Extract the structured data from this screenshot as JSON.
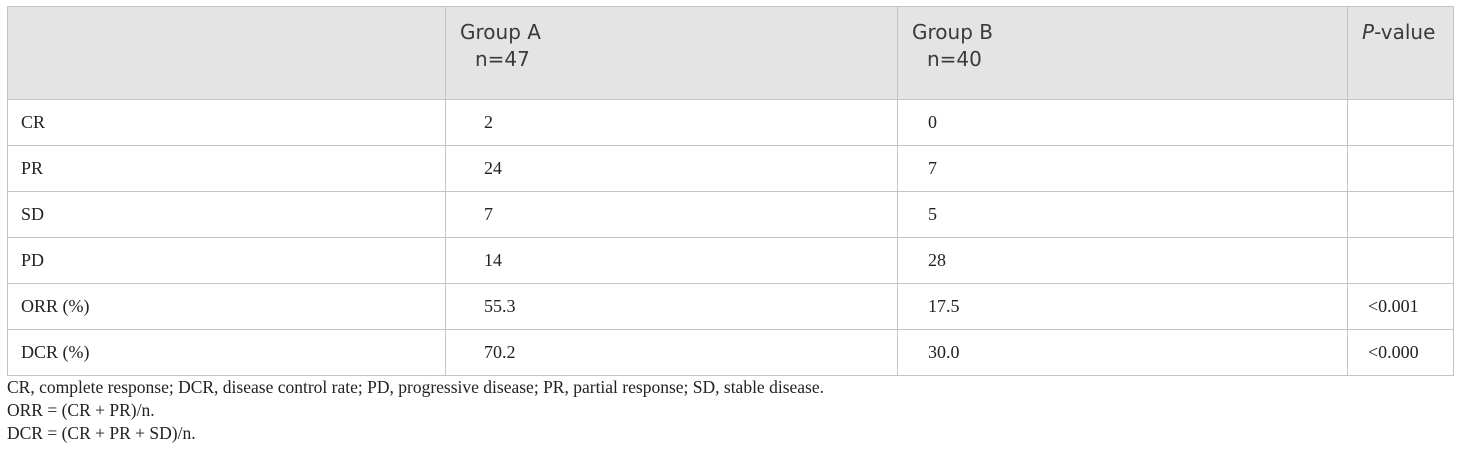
{
  "table": {
    "headers": {
      "col1": "",
      "group_a_line1": "Group A",
      "group_a_line2": "n=47",
      "group_b_line1": "Group B",
      "group_b_line2": "n=40",
      "pvalue_italic": "P",
      "pvalue_rest": "-value"
    },
    "rows": [
      {
        "label": "CR",
        "group_a": "2",
        "group_b": "0",
        "p": ""
      },
      {
        "label": "PR",
        "group_a": "24",
        "group_b": "7",
        "p": ""
      },
      {
        "label": "SD",
        "group_a": "7",
        "group_b": "5",
        "p": ""
      },
      {
        "label": "PD",
        "group_a": "14",
        "group_b": "28",
        "p": ""
      },
      {
        "label": "ORR (%)",
        "group_a": "55.3",
        "group_b": "17.5",
        "p": "<0.001"
      },
      {
        "label": "DCR (%)",
        "group_a": "70.2",
        "group_b": "30.0",
        "p": "<0.000"
      }
    ]
  },
  "footnotes": [
    "CR, complete response; DCR, disease control rate; PD, progressive disease; PR, partial response; SD, stable disease.",
    "ORR = (CR + PR)/n.",
    "DCR = (CR + PR + SD)/n."
  ]
}
